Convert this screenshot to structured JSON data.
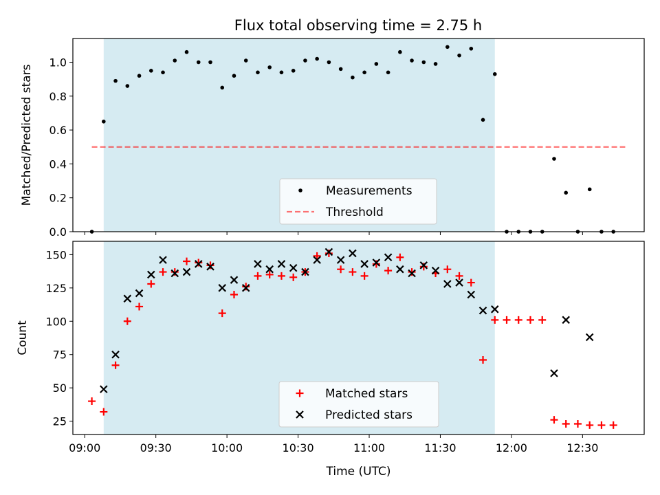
{
  "figure": {
    "title": "Flux total observing time = 2.75 h"
  },
  "colors": {
    "shade": "#add8e6",
    "threshold": "#ff0000",
    "matched": "#ff0000",
    "predicted": "#000000",
    "measurement": "#000000"
  },
  "chart_data": [
    {
      "type": "scatter",
      "panel": "top",
      "ylabel": "Matched/Predicted stars",
      "xlabel": "",
      "xlim": [
        "08:55",
        "12:56"
      ],
      "ylim": [
        0,
        1.14
      ],
      "yticks": [
        0.0,
        0.2,
        0.4,
        0.6,
        0.8,
        1.0
      ],
      "ytick_labels": [
        "0.0",
        "0.2",
        "0.4",
        "0.6",
        "0.8",
        "1.0"
      ],
      "shaded_interval": [
        "09:08",
        "11:53"
      ],
      "legend": {
        "position": "lower-center",
        "entries": [
          "Measurements",
          "Threshold"
        ]
      },
      "threshold": {
        "name": "Threshold",
        "value": 0.5,
        "x_range": [
          "09:03",
          "12:48"
        ]
      },
      "series": [
        {
          "name": "Measurements",
          "x": [
            "09:03",
            "09:08",
            "09:13",
            "09:18",
            "09:23",
            "09:28",
            "09:33",
            "09:38",
            "09:43",
            "09:48",
            "09:53",
            "09:58",
            "10:03",
            "10:08",
            "10:13",
            "10:18",
            "10:23",
            "10:28",
            "10:33",
            "10:38",
            "10:43",
            "10:48",
            "10:53",
            "10:58",
            "11:03",
            "11:08",
            "11:13",
            "11:18",
            "11:23",
            "11:28",
            "11:33",
            "11:38",
            "11:43",
            "11:48",
            "11:53",
            "11:58",
            "12:03",
            "12:08",
            "12:13",
            "12:18",
            "12:23",
            "12:28",
            "12:33",
            "12:38",
            "12:43"
          ],
          "y": [
            0.0,
            0.65,
            0.89,
            0.86,
            0.92,
            0.95,
            0.94,
            1.01,
            1.06,
            1.0,
            1.0,
            0.85,
            0.92,
            1.01,
            0.94,
            0.97,
            0.94,
            0.95,
            1.01,
            1.02,
            1.0,
            0.96,
            0.91,
            0.94,
            0.99,
            0.94,
            1.06,
            1.01,
            1.0,
            0.99,
            1.09,
            1.04,
            1.08,
            0.66,
            0.93,
            0.0,
            0.0,
            0.0,
            0.0,
            0.43,
            0.23,
            0.0,
            0.25,
            0.0,
            0.0
          ]
        }
      ]
    },
    {
      "type": "scatter",
      "panel": "bottom",
      "ylabel": "Count",
      "xlabel": "Time (UTC)",
      "xlim": [
        "08:55",
        "12:56"
      ],
      "ylim": [
        15,
        160
      ],
      "yticks": [
        25,
        50,
        75,
        100,
        125,
        150
      ],
      "ytick_labels": [
        "25",
        "50",
        "75",
        "100",
        "125",
        "150"
      ],
      "xticks": [
        "09:00",
        "09:30",
        "10:00",
        "10:30",
        "11:00",
        "11:30",
        "12:00",
        "12:30"
      ],
      "xtick_labels": [
        "09:00",
        "09:30",
        "10:00",
        "10:30",
        "11:00",
        "11:30",
        "12:00",
        "12:30"
      ],
      "shaded_interval": [
        "09:08",
        "11:53"
      ],
      "legend": {
        "position": "lower-center",
        "entries": [
          "Matched stars",
          "Predicted stars"
        ]
      },
      "series": [
        {
          "name": "Matched stars",
          "marker": "plus",
          "x": [
            "09:03",
            "09:08",
            "09:13",
            "09:18",
            "09:23",
            "09:28",
            "09:33",
            "09:38",
            "09:43",
            "09:48",
            "09:53",
            "09:58",
            "10:03",
            "10:08",
            "10:13",
            "10:18",
            "10:23",
            "10:28",
            "10:33",
            "10:38",
            "10:43",
            "10:48",
            "10:53",
            "10:58",
            "11:03",
            "11:08",
            "11:13",
            "11:18",
            "11:23",
            "11:28",
            "11:33",
            "11:38",
            "11:43",
            "11:48",
            "11:53",
            "11:58",
            "12:03",
            "12:08",
            "12:13",
            "12:18",
            "12:23",
            "12:28",
            "12:33",
            "12:38",
            "12:43"
          ],
          "y": [
            40,
            32,
            67,
            100,
            111,
            128,
            137,
            137,
            145,
            144,
            142,
            106,
            120,
            126,
            134,
            135,
            134,
            133,
            137,
            149,
            151,
            139,
            137,
            134,
            143,
            138,
            148,
            137,
            141,
            136,
            139,
            134,
            129,
            71,
            101,
            101,
            101,
            101,
            101,
            26,
            23,
            23,
            22,
            22,
            22
          ]
        },
        {
          "name": "Predicted stars",
          "marker": "x",
          "x": [
            "09:08",
            "09:13",
            "09:18",
            "09:23",
            "09:28",
            "09:33",
            "09:38",
            "09:43",
            "09:48",
            "09:53",
            "09:58",
            "10:03",
            "10:08",
            "10:13",
            "10:18",
            "10:23",
            "10:28",
            "10:33",
            "10:38",
            "10:43",
            "10:48",
            "10:53",
            "10:58",
            "11:03",
            "11:08",
            "11:13",
            "11:18",
            "11:23",
            "11:28",
            "11:33",
            "11:38",
            "11:43",
            "11:48",
            "11:53",
            "12:18",
            "12:23",
            "12:33"
          ],
          "y": [
            49,
            75,
            117,
            121,
            135,
            146,
            136,
            137,
            143,
            141,
            125,
            131,
            125,
            143,
            139,
            143,
            140,
            137,
            146,
            152,
            146,
            151,
            143,
            144,
            148,
            139,
            136,
            142,
            138,
            128,
            129,
            120,
            108,
            109,
            61,
            101,
            88
          ]
        }
      ]
    }
  ]
}
